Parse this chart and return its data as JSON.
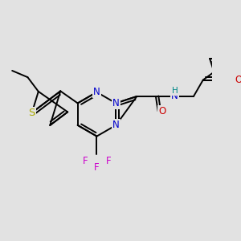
{
  "bg_color": "#e2e2e2",
  "bond_color": "#000000",
  "atom_colors": {
    "N": "#0000cc",
    "O": "#cc0000",
    "S": "#aaaa00",
    "F": "#cc00cc",
    "H": "#008888",
    "C": "#000000"
  },
  "font_size": 8.5
}
